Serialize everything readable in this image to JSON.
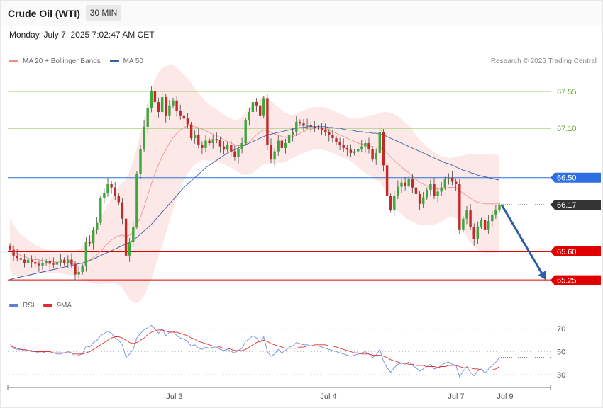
{
  "header": {
    "title": "Crude Oil (WTI)",
    "timeframe": "30 MIN"
  },
  "datetime": "Monday, July 7, 2025 7:02:47 AM CET",
  "copyright": "Research © 2025 Trading Central",
  "legend_main": [
    {
      "label": "MA 20 + Bollinger Bands",
      "color": "#f28b82"
    },
    {
      "label": "MA 50",
      "color": "#3a5ea8"
    }
  ],
  "legend_rsi": [
    {
      "label": "RSI",
      "color": "#5b7fd6"
    },
    {
      "label": "9MA",
      "color": "#e03030"
    }
  ],
  "colors": {
    "bull": "#3aa83a",
    "bear": "#c62828",
    "resistance": "#9ccc65",
    "pivot": "#2f6fe4",
    "support": "#e00000",
    "current": "#333333",
    "arrow": "#2d5ca8"
  },
  "chart_data": {
    "type": "candlestick",
    "title": "Crude Oil (WTI)",
    "timeframe": "30 MIN",
    "y_axis_range": [
      65.1,
      67.8
    ],
    "x_labels": [
      "Jul 3",
      "Jul 4",
      "Jul 7",
      "Jul 9"
    ],
    "price_levels": [
      {
        "label": "67.55",
        "value": 67.55,
        "kind": "resistance"
      },
      {
        "label": "67.10",
        "value": 67.1,
        "kind": "resistance"
      },
      {
        "label": "66.50",
        "value": 66.5,
        "kind": "pivot"
      },
      {
        "label": "66.17",
        "value": 66.17,
        "kind": "current"
      },
      {
        "label": "65.60",
        "value": 65.6,
        "kind": "support"
      },
      {
        "label": "65.25",
        "value": 65.25,
        "kind": "support"
      }
    ],
    "forecast": {
      "from": 66.17,
      "to": 65.25,
      "direction": "down"
    },
    "close_path": [
      65.62,
      65.55,
      65.52,
      65.5,
      65.46,
      65.5,
      65.47,
      65.45,
      65.43,
      65.46,
      65.48,
      65.45,
      65.44,
      65.47,
      65.5,
      65.46,
      65.5,
      65.44,
      65.32,
      65.35,
      65.42,
      65.72,
      65.7,
      65.86,
      65.95,
      66.25,
      66.31,
      66.42,
      66.38,
      66.28,
      66.2,
      66.0,
      65.55,
      65.72,
      65.9,
      66.55,
      66.85,
      67.12,
      67.35,
      67.55,
      67.42,
      67.3,
      67.48,
      67.25,
      67.38,
      67.44,
      67.31,
      67.25,
      67.22,
      67.15,
      66.98,
      67.02,
      66.9,
      66.86,
      66.95,
      66.92,
      66.97,
      66.96,
      66.88,
      66.84,
      66.9,
      66.82,
      66.75,
      66.85,
      66.92,
      67.2,
      67.3,
      67.42,
      67.38,
      67.25,
      67.46,
      66.9,
      66.72,
      66.82,
      66.95,
      66.86,
      66.92,
      67.02,
      67.06,
      67.18,
      67.16,
      67.13,
      67.14,
      67.12,
      67.11,
      67.11,
      67.08,
      67.05,
      67.02,
      66.98,
      66.93,
      66.9,
      66.86,
      66.84,
      66.8,
      66.82,
      66.85,
      66.88,
      66.92,
      66.85,
      66.72,
      66.8,
      67.05,
      66.65,
      66.28,
      66.1,
      66.28,
      66.39,
      66.44,
      66.4,
      66.49,
      66.38,
      66.3,
      66.18,
      66.26,
      66.35,
      66.42,
      66.28,
      66.33,
      66.38,
      66.48,
      66.5,
      66.45,
      66.42,
      65.86,
      66.0,
      66.1,
      65.9,
      65.75,
      65.9,
      65.98,
      65.86,
      65.97,
      66.05,
      66.1,
      66.17
    ],
    "ma20_path": [
      65.7,
      65.62,
      65.58,
      65.55,
      65.54,
      65.52,
      65.51,
      65.5,
      65.5,
      65.49,
      65.48,
      65.48,
      65.47,
      65.47,
      65.47,
      65.46,
      65.46,
      65.46,
      65.45,
      65.45,
      65.46,
      65.48,
      65.5,
      65.53,
      65.56,
      65.6,
      65.65,
      65.7,
      65.74,
      65.77,
      65.79,
      65.8,
      65.78,
      65.8,
      65.84,
      65.92,
      66.02,
      66.14,
      66.28,
      66.42,
      66.55,
      66.66,
      66.76,
      66.84,
      66.92,
      66.99,
      67.04,
      67.08,
      67.11,
      67.13,
      67.13,
      67.12,
      67.11,
      67.09,
      67.07,
      67.05,
      67.03,
      67.01,
      66.99,
      66.96,
      66.94,
      66.92,
      66.9,
      66.89,
      66.89,
      66.91,
      66.94,
      66.98,
      67.02,
      67.05,
      67.08,
      67.07,
      67.05,
      67.03,
      67.02,
      67.0,
      66.99,
      66.99,
      67.0,
      67.02,
      67.04,
      67.06,
      67.08,
      67.09,
      67.1,
      67.1,
      67.1,
      67.09,
      67.08,
      67.06,
      67.04,
      67.02,
      67.0,
      66.98,
      66.96,
      66.94,
      66.92,
      66.91,
      66.9,
      66.89,
      66.88,
      66.87,
      66.87,
      66.84,
      66.8,
      66.75,
      66.71,
      66.67,
      66.63,
      66.59,
      66.56,
      66.52,
      66.48,
      66.44,
      66.42,
      66.4,
      66.38,
      66.37,
      66.36,
      66.36,
      66.37,
      66.38,
      66.38,
      66.38,
      66.34,
      66.31,
      66.28,
      66.25,
      66.22,
      66.2,
      66.19,
      66.18,
      66.18,
      66.18,
      66.18,
      66.18
    ],
    "ma50_path": [
      65.26,
      65.27,
      65.28,
      65.29,
      65.3,
      65.31,
      65.32,
      65.33,
      65.34,
      65.35,
      65.36,
      65.37,
      65.38,
      65.39,
      65.4,
      65.41,
      65.42,
      65.43,
      65.44,
      65.45,
      65.46,
      65.47,
      65.49,
      65.51,
      65.53,
      65.55,
      65.57,
      65.59,
      65.61,
      65.63,
      65.65,
      65.67,
      65.69,
      65.71,
      65.74,
      65.77,
      65.81,
      65.85,
      65.89,
      65.93,
      65.98,
      66.03,
      66.08,
      66.13,
      66.18,
      66.23,
      66.28,
      66.33,
      66.38,
      66.42,
      66.46,
      66.5,
      66.54,
      66.58,
      66.62,
      66.65,
      66.68,
      66.71,
      66.74,
      66.77,
      66.8,
      66.82,
      66.84,
      66.86,
      66.88,
      66.9,
      66.92,
      66.94,
      66.96,
      66.98,
      67.0,
      67.02,
      67.03,
      67.04,
      67.05,
      67.06,
      67.07,
      67.08,
      67.09,
      67.1,
      67.11,
      67.11,
      67.12,
      67.12,
      67.12,
      67.12,
      67.12,
      67.12,
      67.11,
      67.11,
      67.1,
      67.1,
      67.09,
      67.08,
      67.08,
      67.07,
      67.06,
      67.06,
      67.05,
      67.05,
      67.04,
      67.04,
      67.03,
      67.02,
      67.0,
      66.98,
      66.96,
      66.94,
      66.92,
      66.9,
      66.88,
      66.86,
      66.84,
      66.82,
      66.8,
      66.78,
      66.76,
      66.74,
      66.72,
      66.7,
      66.68,
      66.67,
      66.65,
      66.63,
      66.61,
      66.59,
      66.58,
      66.56,
      66.55,
      66.53,
      66.52,
      66.51,
      66.5,
      66.49,
      66.48,
      66.47
    ],
    "bb_width_path": [
      0.32,
      0.3,
      0.28,
      0.26,
      0.24,
      0.22,
      0.2,
      0.18,
      0.16,
      0.15,
      0.14,
      0.14,
      0.14,
      0.14,
      0.14,
      0.14,
      0.14,
      0.15,
      0.16,
      0.18,
      0.2,
      0.24,
      0.28,
      0.32,
      0.36,
      0.4,
      0.44,
      0.48,
      0.52,
      0.56,
      0.6,
      0.64,
      0.7,
      0.78,
      0.86,
      0.95,
      1.02,
      1.08,
      1.12,
      1.16,
      1.15,
      1.12,
      1.08,
      1.02,
      0.95,
      0.88,
      0.8,
      0.72,
      0.65,
      0.58,
      0.52,
      0.46,
      0.42,
      0.38,
      0.36,
      0.34,
      0.33,
      0.32,
      0.31,
      0.3,
      0.3,
      0.3,
      0.3,
      0.32,
      0.35,
      0.38,
      0.4,
      0.42,
      0.42,
      0.42,
      0.42,
      0.4,
      0.38,
      0.36,
      0.34,
      0.32,
      0.3,
      0.28,
      0.26,
      0.26,
      0.26,
      0.26,
      0.26,
      0.26,
      0.26,
      0.26,
      0.26,
      0.26,
      0.26,
      0.26,
      0.26,
      0.26,
      0.26,
      0.26,
      0.26,
      0.28,
      0.3,
      0.32,
      0.34,
      0.36,
      0.38,
      0.4,
      0.42,
      0.46,
      0.5,
      0.54,
      0.56,
      0.58,
      0.58,
      0.58,
      0.58,
      0.56,
      0.54,
      0.52,
      0.5,
      0.48,
      0.46,
      0.44,
      0.42,
      0.4,
      0.38,
      0.36,
      0.36,
      0.38,
      0.42,
      0.46,
      0.5,
      0.54,
      0.56,
      0.58,
      0.6,
      0.6,
      0.6,
      0.6,
      0.6,
      0.6
    ],
    "rsi_ticks": [
      70,
      50,
      30
    ],
    "rsi_range": [
      20,
      85
    ],
    "rsi_path": [
      57,
      53,
      52,
      52,
      51,
      51,
      50,
      50,
      49,
      49,
      50,
      50,
      49,
      48,
      48,
      49,
      50,
      49,
      46,
      47,
      48,
      55,
      54,
      58,
      60,
      64,
      66,
      68,
      66,
      62,
      60,
      56,
      45,
      48,
      52,
      62,
      66,
      69,
      71,
      73,
      70,
      66,
      70,
      64,
      67,
      68,
      64,
      62,
      61,
      59,
      55,
      56,
      53,
      52,
      54,
      53,
      54,
      54,
      52,
      51,
      52,
      50,
      49,
      51,
      53,
      59,
      61,
      64,
      62,
      58,
      63,
      50,
      46,
      48,
      52,
      49,
      51,
      54,
      55,
      58,
      57,
      56,
      56,
      55,
      55,
      55,
      54,
      53,
      52,
      51,
      50,
      49,
      48,
      47,
      46,
      47,
      48,
      49,
      50,
      48,
      45,
      47,
      52,
      42,
      36,
      32,
      36,
      39,
      40,
      39,
      41,
      38,
      36,
      33,
      35,
      37,
      39,
      35,
      36,
      38,
      40,
      41,
      39,
      38,
      28,
      33,
      37,
      32,
      29,
      33,
      35,
      31,
      35,
      38,
      41,
      45
    ],
    "rsi_ma_path": [
      55,
      54,
      53,
      52,
      52,
      51,
      51,
      50,
      50,
      50,
      50,
      50,
      49,
      49,
      49,
      49,
      49,
      49,
      48,
      48,
      48,
      49,
      50,
      52,
      54,
      56,
      58,
      60,
      62,
      63,
      63,
      62,
      60,
      58,
      57,
      58,
      60,
      62,
      65,
      67,
      68,
      69,
      69,
      68,
      67,
      67,
      67,
      66,
      65,
      64,
      62,
      61,
      59,
      58,
      57,
      56,
      55,
      55,
      54,
      53,
      53,
      52,
      51,
      51,
      51,
      52,
      54,
      56,
      58,
      59,
      60,
      59,
      57,
      56,
      55,
      54,
      53,
      53,
      53,
      53,
      54,
      54,
      55,
      55,
      56,
      56,
      56,
      56,
      55,
      55,
      54,
      53,
      52,
      51,
      50,
      49,
      49,
      48,
      48,
      48,
      47,
      47,
      47,
      46,
      45,
      43,
      42,
      41,
      40,
      40,
      39,
      39,
      38,
      38,
      38,
      37,
      37,
      37,
      36,
      37,
      37,
      38,
      38,
      38,
      37,
      36,
      36,
      36,
      35,
      35,
      34,
      34,
      34,
      34,
      35,
      37
    ]
  }
}
